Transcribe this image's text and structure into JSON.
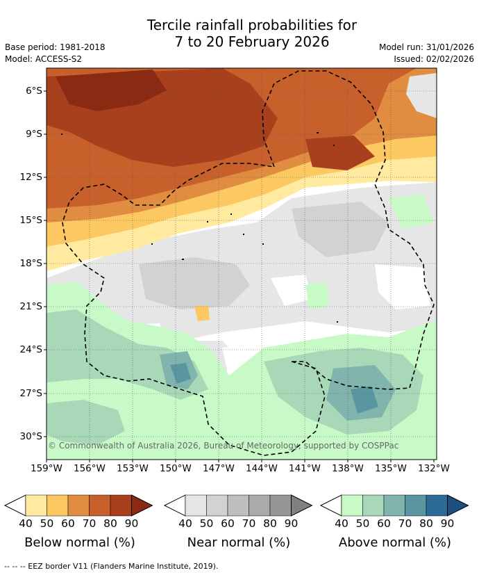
{
  "title": {
    "line1": "Tercile rainfall probabilities for",
    "line2": "7 to 20 February 2026"
  },
  "meta": {
    "base_period": "Base period: 1981-2018",
    "model": "Model: ACCESS-S2",
    "model_run": "Model run: 31/01/2026",
    "issued": "Issued: 02/02/2026"
  },
  "map": {
    "lat_labels": [
      "6°S",
      "9°S",
      "12°S",
      "15°S",
      "18°S",
      "21°S",
      "24°S",
      "27°S",
      "30°S"
    ],
    "lon_labels": [
      "159°W",
      "156°W",
      "153°W",
      "150°W",
      "147°W",
      "144°W",
      "141°W",
      "138°W",
      "135°W",
      "132°W"
    ],
    "copyright": "© Commonwealth of Australia 2026, Bureau of Meteorology, supported by COSPPac"
  },
  "colorbars": [
    {
      "label": "Below normal (%)",
      "ticks": [
        "40",
        "50",
        "60",
        "70",
        "80",
        "90"
      ],
      "colors": [
        "#ffeaa0",
        "#fbc862",
        "#e08d42",
        "#c8602c",
        "#a8401e",
        "#8a2a12"
      ]
    },
    {
      "label": "Near normal (%)",
      "ticks": [
        "40",
        "50",
        "60",
        "70",
        "80",
        "90"
      ],
      "colors": [
        "#e6e6e6",
        "#d2d2d2",
        "#bebebe",
        "#aaaaaa",
        "#969696",
        "#808080"
      ]
    },
    {
      "label": "Above normal (%)",
      "ticks": [
        "40",
        "50",
        "60",
        "70",
        "80",
        "90"
      ],
      "colors": [
        "#c8fac8",
        "#a8d8b8",
        "#80b4ac",
        "#5a96a2",
        "#2e6a98",
        "#1c4e80"
      ]
    }
  ],
  "footer": {
    "legend_text": "-- -- -- EEZ border V11 (Flanders Marine Institute, 2019)."
  },
  "colors": {
    "below_90": "#8a2a12",
    "below_80": "#a8401e",
    "below_70": "#c8602c",
    "below_60": "#e08d42",
    "below_50": "#fbc862",
    "below_40": "#ffeaa0",
    "near_40": "#e6e6e6",
    "near_50": "#d2d2d2",
    "above_40": "#c8fac8",
    "above_50": "#a8d8b8",
    "above_60": "#80b4ac"
  }
}
